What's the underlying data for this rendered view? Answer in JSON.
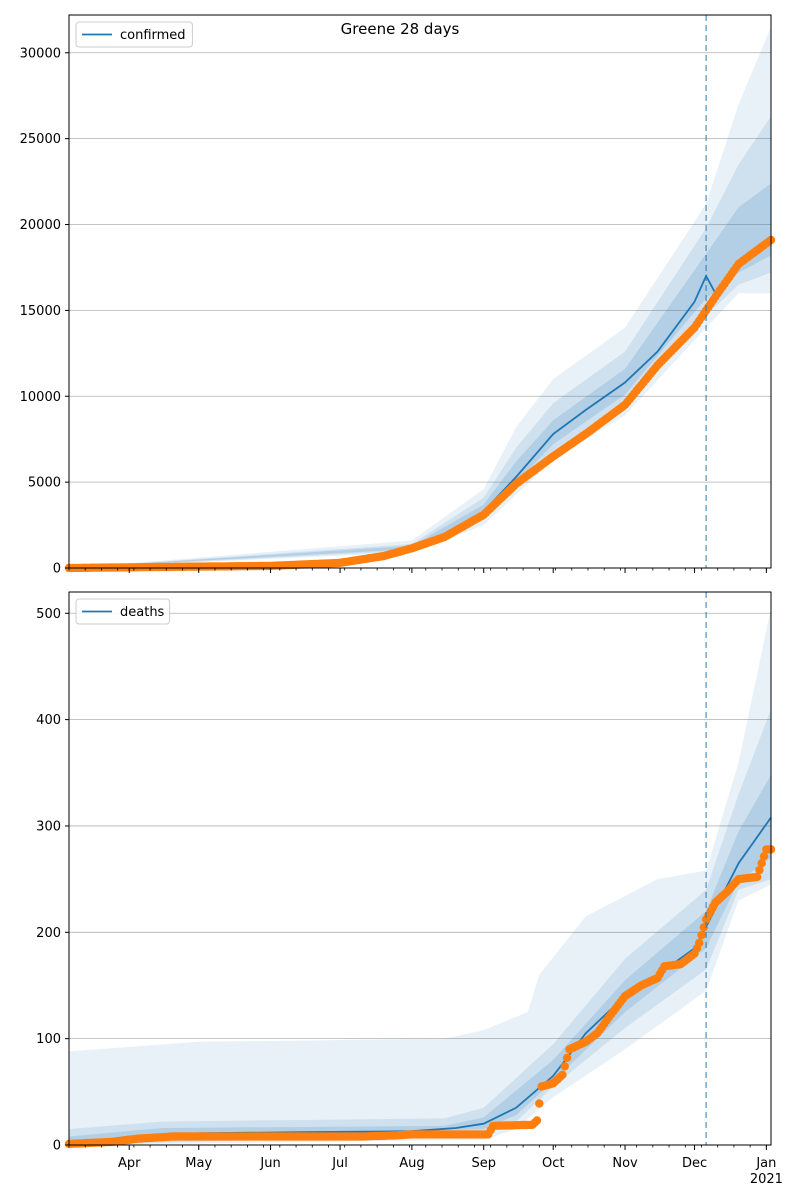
{
  "figure": {
    "title": "Greene 28 days"
  },
  "chart_data": [
    {
      "type": "line",
      "legend": "confirmed",
      "legend_placement": "top-left",
      "grid": "horizontal",
      "ylim": [
        0,
        32200
      ],
      "yticks": [
        0,
        5000,
        10000,
        15000,
        20000,
        25000,
        30000
      ],
      "xrange": [
        "2020-03-06",
        "2021-01-03"
      ],
      "vline": "2020-12-06",
      "xticks": [
        {
          "date": "2020-04-01",
          "label": "Apr"
        },
        {
          "date": "2020-05-01",
          "label": "May"
        },
        {
          "date": "2020-06-01",
          "label": "Jun"
        },
        {
          "date": "2020-07-01",
          "label": "Jul"
        },
        {
          "date": "2020-08-01",
          "label": "Aug"
        },
        {
          "date": "2020-09-01",
          "label": "Sep"
        },
        {
          "date": "2020-10-01",
          "label": "Oct"
        },
        {
          "date": "2020-11-01",
          "label": "Nov"
        },
        {
          "date": "2020-12-01",
          "label": "Dec"
        },
        {
          "date": "2021-01-01",
          "label": "Jan\n2021"
        }
      ],
      "model": [
        {
          "date": "2020-03-06",
          "y": 0
        },
        {
          "date": "2020-06-01",
          "y": 100
        },
        {
          "date": "2020-07-01",
          "y": 250
        },
        {
          "date": "2020-08-01",
          "y": 1200
        },
        {
          "date": "2020-08-15",
          "y": 1900
        },
        {
          "date": "2020-09-01",
          "y": 3300
        },
        {
          "date": "2020-09-15",
          "y": 5300
        },
        {
          "date": "2020-10-01",
          "y": 7800
        },
        {
          "date": "2020-10-15",
          "y": 9200
        },
        {
          "date": "2020-11-01",
          "y": 10800
        },
        {
          "date": "2020-11-15",
          "y": 12600
        },
        {
          "date": "2020-12-01",
          "y": 15500
        },
        {
          "date": "2020-12-06",
          "y": 17000
        },
        {
          "date": "2020-12-10",
          "y": 16000
        },
        {
          "date": "2020-12-20",
          "y": 17800
        },
        {
          "date": "2021-01-03",
          "y": 19200
        }
      ],
      "bands": [
        {
          "level": 1,
          "upper": [
            {
              "date": "2020-03-06",
              "y": 0
            },
            {
              "date": "2020-08-01",
              "y": 1600
            },
            {
              "date": "2020-09-01",
              "y": 4600
            },
            {
              "date": "2020-09-15",
              "y": 8200
            },
            {
              "date": "2020-10-01",
              "y": 11000
            },
            {
              "date": "2020-11-01",
              "y": 14000
            },
            {
              "date": "2020-12-06",
              "y": 21200
            },
            {
              "date": "2020-12-20",
              "y": 27000
            },
            {
              "date": "2021-01-03",
              "y": 31500
            }
          ],
          "lower": [
            {
              "date": "2021-01-03",
              "y": 16000
            },
            {
              "date": "2020-12-20",
              "y": 16000
            },
            {
              "date": "2020-12-06",
              "y": 14000
            },
            {
              "date": "2020-11-01",
              "y": 8900
            },
            {
              "date": "2020-10-01",
              "y": 6300
            },
            {
              "date": "2020-09-01",
              "y": 2500
            },
            {
              "date": "2020-08-01",
              "y": 900
            },
            {
              "date": "2020-03-06",
              "y": 0
            }
          ]
        },
        {
          "level": 2,
          "upper": [
            {
              "date": "2020-03-06",
              "y": 0
            },
            {
              "date": "2020-08-01",
              "y": 1400
            },
            {
              "date": "2020-09-01",
              "y": 4100
            },
            {
              "date": "2020-09-15",
              "y": 7000
            },
            {
              "date": "2020-10-01",
              "y": 9600
            },
            {
              "date": "2020-11-01",
              "y": 12600
            },
            {
              "date": "2020-12-06",
              "y": 19800
            },
            {
              "date": "2020-12-20",
              "y": 23500
            },
            {
              "date": "2021-01-03",
              "y": 26300
            }
          ],
          "lower": [
            {
              "date": "2021-01-03",
              "y": 17200
            },
            {
              "date": "2020-12-20",
              "y": 16500
            },
            {
              "date": "2020-12-06",
              "y": 14700
            },
            {
              "date": "2020-11-01",
              "y": 9500
            },
            {
              "date": "2020-10-01",
              "y": 6800
            },
            {
              "date": "2020-09-01",
              "y": 2800
            },
            {
              "date": "2020-08-01",
              "y": 1000
            },
            {
              "date": "2020-03-06",
              "y": 0
            }
          ]
        },
        {
          "level": 3,
          "upper": [
            {
              "date": "2020-03-06",
              "y": 0
            },
            {
              "date": "2020-08-01",
              "y": 1300
            },
            {
              "date": "2020-09-01",
              "y": 3700
            },
            {
              "date": "2020-09-15",
              "y": 6200
            },
            {
              "date": "2020-10-01",
              "y": 8600
            },
            {
              "date": "2020-11-01",
              "y": 11600
            },
            {
              "date": "2020-12-06",
              "y": 18300
            },
            {
              "date": "2020-12-20",
              "y": 21000
            },
            {
              "date": "2021-01-03",
              "y": 22400
            }
          ],
          "lower": [
            {
              "date": "2021-01-03",
              "y": 18200
            },
            {
              "date": "2020-12-20",
              "y": 17200
            },
            {
              "date": "2020-12-06",
              "y": 15700
            },
            {
              "date": "2020-11-01",
              "y": 10100
            },
            {
              "date": "2020-10-01",
              "y": 7200
            },
            {
              "date": "2020-09-01",
              "y": 3000
            },
            {
              "date": "2020-08-01",
              "y": 1100
            },
            {
              "date": "2020-03-06",
              "y": 0
            }
          ]
        }
      ],
      "observed": [
        {
          "date": "2020-03-06",
          "y": 0
        },
        {
          "date": "2020-04-15",
          "y": 60
        },
        {
          "date": "2020-06-01",
          "y": 120
        },
        {
          "date": "2020-07-01",
          "y": 300
        },
        {
          "date": "2020-07-20",
          "y": 700
        },
        {
          "date": "2020-08-01",
          "y": 1150
        },
        {
          "date": "2020-08-15",
          "y": 1800
        },
        {
          "date": "2020-09-01",
          "y": 3100
        },
        {
          "date": "2020-09-15",
          "y": 4900
        },
        {
          "date": "2020-10-01",
          "y": 6500
        },
        {
          "date": "2020-10-15",
          "y": 7800
        },
        {
          "date": "2020-11-01",
          "y": 9500
        },
        {
          "date": "2020-11-15",
          "y": 11800
        },
        {
          "date": "2020-12-01",
          "y": 14000
        },
        {
          "date": "2020-12-10",
          "y": 15800
        },
        {
          "date": "2020-12-20",
          "y": 17700
        },
        {
          "date": "2021-01-03",
          "y": 19100
        }
      ]
    },
    {
      "type": "line",
      "legend": "deaths",
      "legend_placement": "top-left",
      "grid": "horizontal",
      "ylim": [
        0,
        520
      ],
      "yticks": [
        0,
        100,
        200,
        300,
        400,
        500
      ],
      "xrange": [
        "2020-03-06",
        "2021-01-03"
      ],
      "vline": "2020-12-06",
      "xticks": [
        {
          "date": "2020-04-01",
          "label": "Apr"
        },
        {
          "date": "2020-05-01",
          "label": "May"
        },
        {
          "date": "2020-06-01",
          "label": "Jun"
        },
        {
          "date": "2020-07-01",
          "label": "Jul"
        },
        {
          "date": "2020-08-01",
          "label": "Aug"
        },
        {
          "date": "2020-09-01",
          "label": "Sep"
        },
        {
          "date": "2020-10-01",
          "label": "Oct"
        },
        {
          "date": "2020-11-01",
          "label": "Nov"
        },
        {
          "date": "2020-12-01",
          "label": "Dec"
        },
        {
          "date": "2021-01-01",
          "label": "Jan\n2021"
        }
      ],
      "model": [
        {
          "date": "2020-03-06",
          "y": 0
        },
        {
          "date": "2020-04-01",
          "y": 8
        },
        {
          "date": "2020-05-01",
          "y": 11
        },
        {
          "date": "2020-06-15",
          "y": 12
        },
        {
          "date": "2020-08-01",
          "y": 13
        },
        {
          "date": "2020-08-20",
          "y": 16
        },
        {
          "date": "2020-09-01",
          "y": 20
        },
        {
          "date": "2020-09-15",
          "y": 35
        },
        {
          "date": "2020-10-01",
          "y": 65
        },
        {
          "date": "2020-10-15",
          "y": 105
        },
        {
          "date": "2020-11-01",
          "y": 140
        },
        {
          "date": "2020-11-15",
          "y": 160
        },
        {
          "date": "2020-12-01",
          "y": 185
        },
        {
          "date": "2020-12-06",
          "y": 205
        },
        {
          "date": "2020-12-20",
          "y": 265
        },
        {
          "date": "2021-01-03",
          "y": 308
        }
      ],
      "bands": [
        {
          "level": 1,
          "upper": [
            {
              "date": "2020-03-06",
              "y": 88
            },
            {
              "date": "2020-05-01",
              "y": 97
            },
            {
              "date": "2020-08-15",
              "y": 100
            },
            {
              "date": "2020-09-01",
              "y": 108
            },
            {
              "date": "2020-09-20",
              "y": 125
            },
            {
              "date": "2020-09-25",
              "y": 160
            },
            {
              "date": "2020-10-15",
              "y": 215
            },
            {
              "date": "2020-11-15",
              "y": 250
            },
            {
              "date": "2020-12-06",
              "y": 258
            },
            {
              "date": "2020-12-20",
              "y": 360
            },
            {
              "date": "2021-01-03",
              "y": 505
            }
          ],
          "lower": [
            {
              "date": "2021-01-03",
              "y": 245
            },
            {
              "date": "2020-12-20",
              "y": 230
            },
            {
              "date": "2020-12-06",
              "y": 145
            },
            {
              "date": "2020-11-01",
              "y": 90
            },
            {
              "date": "2020-10-01",
              "y": 45
            },
            {
              "date": "2020-09-15",
              "y": 15
            },
            {
              "date": "2020-09-01",
              "y": 5
            },
            {
              "date": "2020-03-06",
              "y": 0
            }
          ]
        },
        {
          "level": 2,
          "upper": [
            {
              "date": "2020-03-06",
              "y": 15
            },
            {
              "date": "2020-04-15",
              "y": 22
            },
            {
              "date": "2020-08-15",
              "y": 25
            },
            {
              "date": "2020-09-01",
              "y": 35
            },
            {
              "date": "2020-10-01",
              "y": 95
            },
            {
              "date": "2020-11-01",
              "y": 175
            },
            {
              "date": "2020-12-06",
              "y": 240
            },
            {
              "date": "2020-12-20",
              "y": 330
            },
            {
              "date": "2021-01-03",
              "y": 410
            }
          ],
          "lower": [
            {
              "date": "2021-01-03",
              "y": 250
            },
            {
              "date": "2020-12-20",
              "y": 240
            },
            {
              "date": "2020-12-06",
              "y": 165
            },
            {
              "date": "2020-11-01",
              "y": 110
            },
            {
              "date": "2020-10-01",
              "y": 55
            },
            {
              "date": "2020-09-15",
              "y": 22
            },
            {
              "date": "2020-09-01",
              "y": 10
            },
            {
              "date": "2020-03-06",
              "y": 0
            }
          ]
        },
        {
          "level": 3,
          "upper": [
            {
              "date": "2020-03-06",
              "y": 8
            },
            {
              "date": "2020-04-15",
              "y": 16
            },
            {
              "date": "2020-08-15",
              "y": 18
            },
            {
              "date": "2020-09-01",
              "y": 26
            },
            {
              "date": "2020-10-01",
              "y": 80
            },
            {
              "date": "2020-11-01",
              "y": 155
            },
            {
              "date": "2020-12-06",
              "y": 220
            },
            {
              "date": "2020-12-20",
              "y": 295
            },
            {
              "date": "2021-01-03",
              "y": 348
            }
          ],
          "lower": [
            {
              "date": "2021-01-03",
              "y": 270
            },
            {
              "date": "2020-12-20",
              "y": 248
            },
            {
              "date": "2020-12-06",
              "y": 185
            },
            {
              "date": "2020-11-01",
              "y": 125
            },
            {
              "date": "2020-10-01",
              "y": 60
            },
            {
              "date": "2020-09-15",
              "y": 28
            },
            {
              "date": "2020-09-01",
              "y": 15
            },
            {
              "date": "2020-03-06",
              "y": 0
            }
          ]
        }
      ],
      "observed": [
        {
          "date": "2020-03-06",
          "y": 1
        },
        {
          "date": "2020-03-25",
          "y": 3
        },
        {
          "date": "2020-04-05",
          "y": 6
        },
        {
          "date": "2020-04-20",
          "y": 8
        },
        {
          "date": "2020-06-25",
          "y": 8
        },
        {
          "date": "2020-07-10",
          "y": 8
        },
        {
          "date": "2020-07-25",
          "y": 9
        },
        {
          "date": "2020-08-01",
          "y": 10
        },
        {
          "date": "2020-09-03",
          "y": 10
        },
        {
          "date": "2020-09-05",
          "y": 18
        },
        {
          "date": "2020-09-22",
          "y": 19
        },
        {
          "date": "2020-09-24",
          "y": 23
        },
        {
          "date": "2020-09-26",
          "y": 55
        },
        {
          "date": "2020-10-01",
          "y": 58
        },
        {
          "date": "2020-10-05",
          "y": 66
        },
        {
          "date": "2020-10-08",
          "y": 90
        },
        {
          "date": "2020-10-15",
          "y": 97
        },
        {
          "date": "2020-10-20",
          "y": 105
        },
        {
          "date": "2020-10-25",
          "y": 120
        },
        {
          "date": "2020-11-01",
          "y": 140
        },
        {
          "date": "2020-11-08",
          "y": 150
        },
        {
          "date": "2020-11-15",
          "y": 157
        },
        {
          "date": "2020-11-18",
          "y": 168
        },
        {
          "date": "2020-11-25",
          "y": 170
        },
        {
          "date": "2020-12-01",
          "y": 180
        },
        {
          "date": "2020-12-03",
          "y": 190
        },
        {
          "date": "2020-12-06",
          "y": 212
        },
        {
          "date": "2020-12-10",
          "y": 228
        },
        {
          "date": "2020-12-15",
          "y": 238
        },
        {
          "date": "2020-12-20",
          "y": 250
        },
        {
          "date": "2020-12-28",
          "y": 252
        },
        {
          "date": "2021-01-01",
          "y": 278
        },
        {
          "date": "2021-01-03",
          "y": 278
        }
      ]
    }
  ]
}
